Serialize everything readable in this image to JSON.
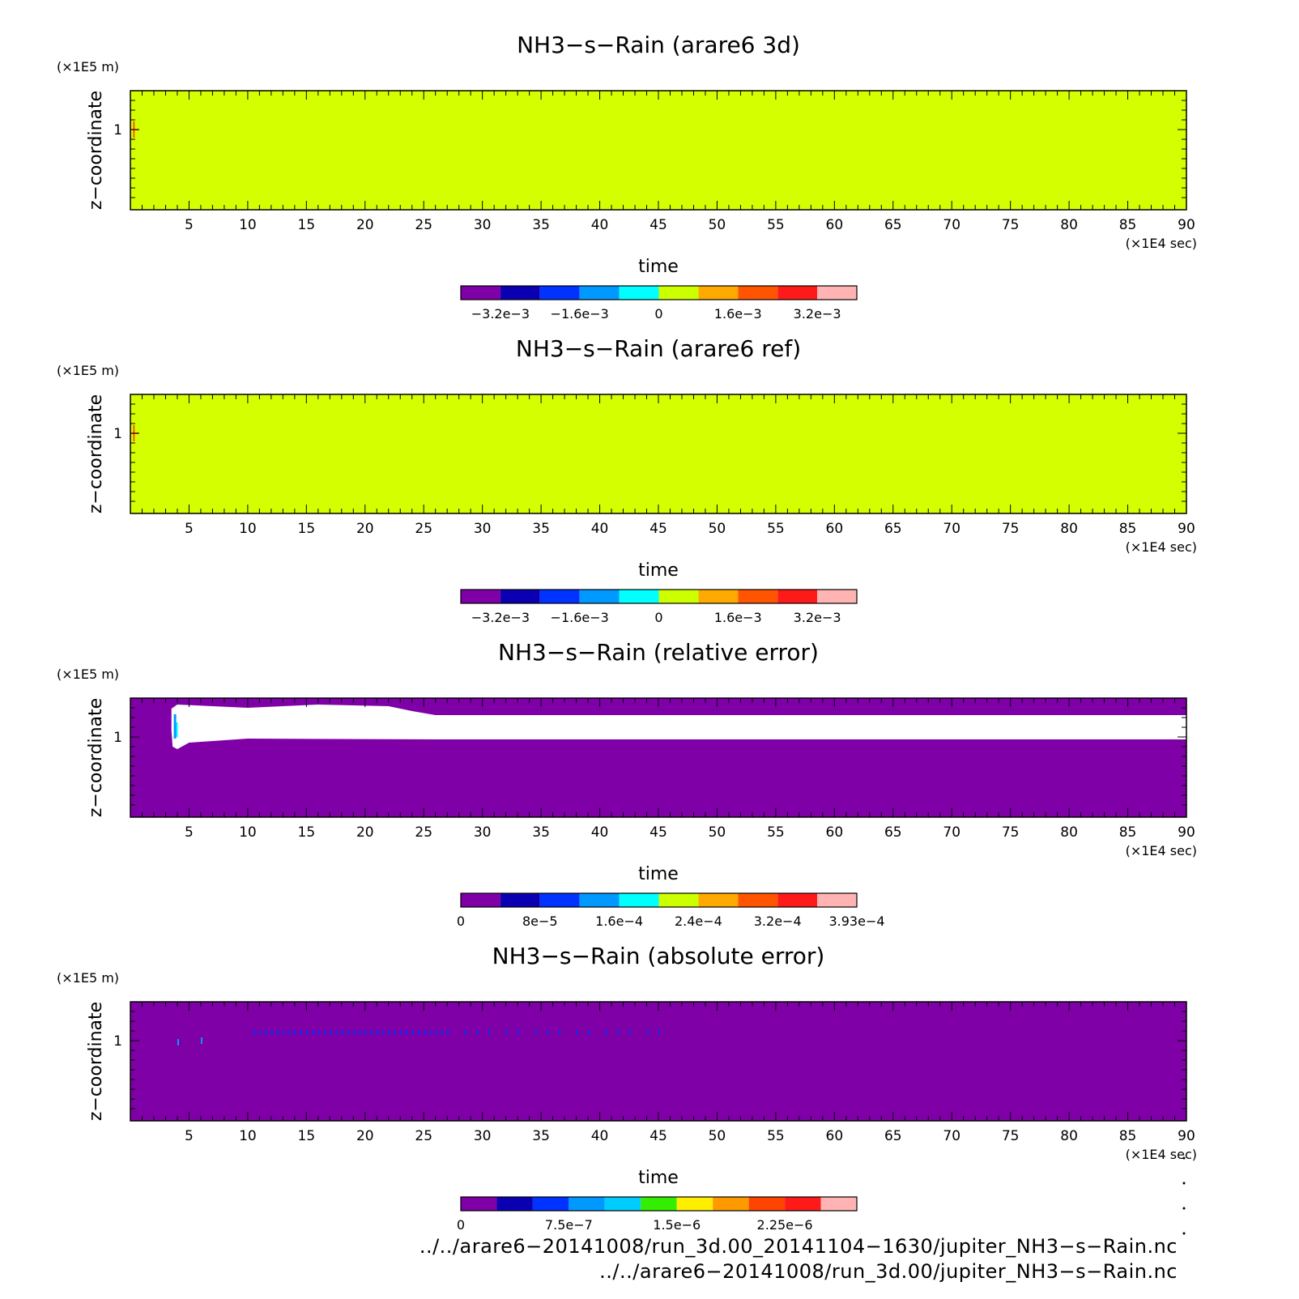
{
  "chart_data": [
    {
      "type": "heatmap",
      "title": "NH3−s−Rain (arare6 3d)",
      "xlabel": "time",
      "ylabel": "z−coordinate",
      "xunit": "(×1E4 sec)",
      "yunit": "(×1E5 m)",
      "xlim": [
        0,
        90
      ],
      "xticks": [
        "5",
        "10",
        "15",
        "20",
        "25",
        "30",
        "35",
        "40",
        "45",
        "50",
        "55",
        "60",
        "65",
        "70",
        "75",
        "80",
        "85",
        "90"
      ],
      "yticks": [
        "1"
      ],
      "background": "#d4ff00",
      "colorbar": {
        "colors": [
          "#7f00a6",
          "#0a00b2",
          "#0033ff",
          "#0099ff",
          "#00ffff",
          "#ccff00",
          "#ffaa00",
          "#ff5500",
          "#ff1a1a",
          "#ffb3b3"
        ],
        "labels": [
          "−3.2e−3",
          "−1.6e−3",
          "0",
          "1.6e−3",
          "3.2e−3"
        ],
        "label_positions": [
          1,
          3,
          5,
          7,
          9
        ]
      }
    },
    {
      "type": "heatmap",
      "title": "NH3−s−Rain (arare6 ref)",
      "xlabel": "time",
      "ylabel": "z−coordinate",
      "xunit": "(×1E4 sec)",
      "yunit": "(×1E5 m)",
      "xlim": [
        0,
        90
      ],
      "xticks": [
        "5",
        "10",
        "15",
        "20",
        "25",
        "30",
        "35",
        "40",
        "45",
        "50",
        "55",
        "60",
        "65",
        "70",
        "75",
        "80",
        "85",
        "90"
      ],
      "yticks": [
        "1"
      ],
      "background": "#d4ff00",
      "colorbar": {
        "colors": [
          "#7f00a6",
          "#0a00b2",
          "#0033ff",
          "#0099ff",
          "#00ffff",
          "#ccff00",
          "#ffaa00",
          "#ff5500",
          "#ff1a1a",
          "#ffb3b3"
        ],
        "labels": [
          "−3.2e−3",
          "−1.6e−3",
          "0",
          "1.6e−3",
          "3.2e−3"
        ],
        "label_positions": [
          1,
          3,
          5,
          7,
          9
        ]
      }
    },
    {
      "type": "heatmap",
      "title": "NH3−s−Rain (relative error)",
      "xlabel": "time",
      "ylabel": "z−coordinate",
      "xunit": "(×1E4 sec)",
      "yunit": "(×1E5 m)",
      "xlim": [
        0,
        90
      ],
      "xticks": [
        "5",
        "10",
        "15",
        "20",
        "25",
        "30",
        "35",
        "40",
        "45",
        "50",
        "55",
        "60",
        "65",
        "70",
        "75",
        "80",
        "85",
        "90"
      ],
      "yticks": [
        "1"
      ],
      "background": "#7f00a6",
      "colorbar": {
        "colors": [
          "#7f00a6",
          "#0a00b2",
          "#0033ff",
          "#0099ff",
          "#00ffff",
          "#ccff00",
          "#ffaa00",
          "#ff5500",
          "#ff1a1a",
          "#ffb3b3"
        ],
        "labels": [
          "0",
          "8e−5",
          "1.6e−4",
          "2.4e−4",
          "3.2e−4",
          "3.93e−4"
        ],
        "label_positions": [
          0,
          2,
          4,
          6,
          8,
          10
        ]
      }
    },
    {
      "type": "heatmap",
      "title": "NH3−s−Rain (absolute error)",
      "xlabel": "time",
      "ylabel": "z−coordinate",
      "xunit": "(×1E4 sec)",
      "yunit": "(×1E5 m)",
      "xlim": [
        0,
        90
      ],
      "xticks": [
        "5",
        "10",
        "15",
        "20",
        "25",
        "30",
        "35",
        "40",
        "45",
        "50",
        "55",
        "60",
        "65",
        "70",
        "75",
        "80",
        "85",
        "90"
      ],
      "yticks": [
        "1"
      ],
      "background": "#7f00a6",
      "colorbar": {
        "colors": [
          "#7f00a6",
          "#0a00b2",
          "#0033ff",
          "#0099ff",
          "#00ccff",
          "#33ee00",
          "#ffee00",
          "#ff9900",
          "#ff4400",
          "#ff1a1a",
          "#ffb3b3"
        ],
        "labels": [
          "0",
          "7.5e−7",
          "1.5e−6",
          "2.25e−6"
        ],
        "label_positions": [
          0,
          3,
          6,
          9
        ]
      }
    }
  ],
  "footer": {
    "line1": "../../arare6−20141008/run_3d.00_20141104−1630/jupiter_NH3−s−Rain.nc",
    "line2": "../../arare6−20141008/run_3d.00/jupiter_NH3−s−Rain.nc"
  }
}
